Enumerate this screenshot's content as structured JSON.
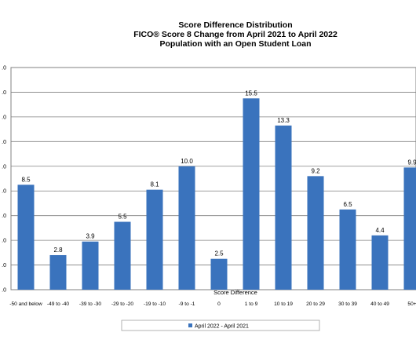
{
  "chart_data": {
    "type": "bar",
    "title": [
      "Score Difference Distribution",
      "FICO® Score 8 Change from April 2021 to April 2022",
      "Population with an Open Student Loan"
    ],
    "xlabel": "Score Difference",
    "ylabel": "",
    "categories": [
      "-50 and below",
      "-49 to -40",
      "-39 to -30",
      "-29 to -20",
      "-19 to -10",
      "-9 to -1",
      "0",
      "1 to 9",
      "10 to 19",
      "20 to 29",
      "30 to 39",
      "40 to 49",
      "50+"
    ],
    "series": [
      {
        "name": "April 2022 - April 2021",
        "values": [
          8.5,
          2.8,
          3.9,
          5.5,
          8.1,
          10.0,
          2.5,
          15.5,
          13.3,
          9.2,
          6.5,
          4.4,
          9.9
        ],
        "labels": [
          "8.5",
          "2.8",
          "3.9",
          "5.5",
          "8.1",
          "10.0",
          "2.5",
          "15.5",
          "13.3",
          "9.2",
          "6.5",
          "4.4",
          "9.9"
        ]
      }
    ],
    "ylim": [
      0,
      18
    ],
    "yticks": [
      0,
      2,
      4,
      6,
      8,
      10,
      12,
      14,
      16,
      18
    ],
    "ytick_labels": [
      ".0",
      ".0",
      ".0",
      ".0",
      ".0",
      ".0",
      ".0",
      ".0",
      ".0",
      ".0"
    ],
    "grid": true,
    "legend_position": "bottom",
    "bar_color": "#3a73bd"
  }
}
